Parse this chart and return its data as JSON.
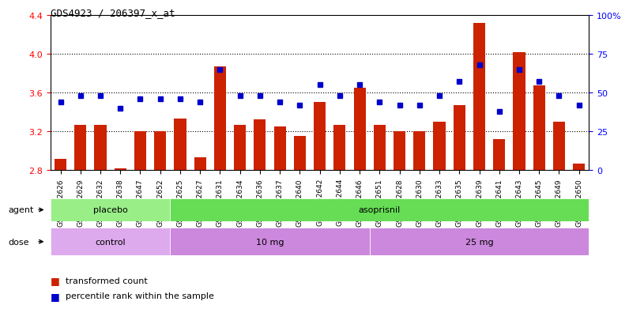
{
  "title": "GDS4923 / 206397_x_at",
  "samples": [
    "GSM1152626",
    "GSM1152629",
    "GSM1152632",
    "GSM1152638",
    "GSM1152647",
    "GSM1152652",
    "GSM1152625",
    "GSM1152627",
    "GSM1152631",
    "GSM1152634",
    "GSM1152636",
    "GSM1152637",
    "GSM1152640",
    "GSM1152642",
    "GSM1152644",
    "GSM1152646",
    "GSM1152651",
    "GSM1152628",
    "GSM1152630",
    "GSM1152633",
    "GSM1152635",
    "GSM1152639",
    "GSM1152641",
    "GSM1152643",
    "GSM1152645",
    "GSM1152649",
    "GSM1152650"
  ],
  "bar_values": [
    2.92,
    3.27,
    3.27,
    2.82,
    3.2,
    3.2,
    3.33,
    2.93,
    3.87,
    3.27,
    3.32,
    3.25,
    3.15,
    3.5,
    3.27,
    3.65,
    3.27,
    3.2,
    3.2,
    3.3,
    3.47,
    4.32,
    3.12,
    4.02,
    3.67,
    3.3,
    2.87
  ],
  "percentile_values": [
    44,
    48,
    48,
    40,
    46,
    46,
    46,
    44,
    65,
    48,
    48,
    44,
    42,
    55,
    48,
    55,
    44,
    42,
    42,
    48,
    57,
    68,
    38,
    65,
    57,
    48,
    42
  ],
  "ylim_left": [
    2.8,
    4.4
  ],
  "ylim_right": [
    0,
    100
  ],
  "yticks_left": [
    2.8,
    3.2,
    3.6,
    4.0,
    4.4
  ],
  "yticks_right": [
    0,
    25,
    50,
    75,
    100
  ],
  "ytick_labels_right": [
    "0",
    "25",
    "50",
    "75",
    "100%"
  ],
  "bar_color": "#cc2200",
  "dot_color": "#0000cc",
  "agent_groups": [
    {
      "label": "placebo",
      "start": 0,
      "end": 6,
      "color": "#99ee88"
    },
    {
      "label": "asoprisnil",
      "start": 6,
      "end": 27,
      "color": "#66dd55"
    }
  ],
  "dose_groups": [
    {
      "label": "control",
      "start": 0,
      "end": 6,
      "color": "#ddaaee"
    },
    {
      "label": "10 mg",
      "start": 6,
      "end": 16,
      "color": "#cc88dd"
    },
    {
      "label": "25 mg",
      "start": 16,
      "end": 27,
      "color": "#cc88dd"
    }
  ],
  "agent_label": "agent",
  "dose_label": "dose",
  "legend_bar_label": "transformed count",
  "legend_dot_label": "percentile rank within the sample"
}
